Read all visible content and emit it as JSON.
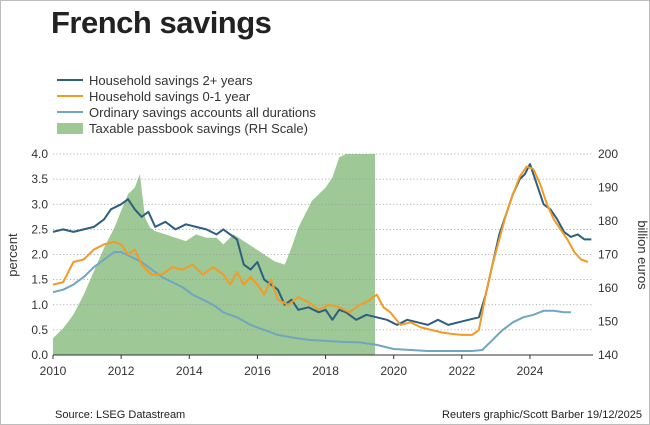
{
  "title": "French savings",
  "source": "Source: LSEG Datastream",
  "credit": "Reuters graphic/Scott Barber 19/12/2025",
  "chart_data": {
    "type": "line",
    "title": "French savings",
    "ylabel_left": "percent",
    "ylabel_right": "billion euros",
    "xlim": [
      2010,
      2025.85
    ],
    "ylim_left": [
      0,
      4
    ],
    "ylim_right": [
      140,
      200
    ],
    "x_ticks": [
      "2010",
      "2012",
      "2014",
      "2016",
      "2018",
      "2020",
      "2022",
      "2024"
    ],
    "y_ticks_left": [
      "0.0",
      "0.5",
      "1.0",
      "1.5",
      "2.0",
      "2.5",
      "3.0",
      "3.5",
      "4.0"
    ],
    "y_ticks_right": [
      "140",
      "150",
      "160",
      "170",
      "180",
      "190",
      "200"
    ],
    "grid": "horizontal dotted",
    "legend_position": "top-left",
    "series": [
      {
        "name": "Household savings 2+ years",
        "color": "#2e5f80",
        "axis": "left",
        "x": [
          2010.0,
          2010.3,
          2010.6,
          2010.9,
          2011.2,
          2011.5,
          2011.7,
          2012.0,
          2012.2,
          2012.4,
          2012.6,
          2012.8,
          2013.0,
          2013.3,
          2013.6,
          2013.9,
          2014.2,
          2014.5,
          2014.8,
          2015.0,
          2015.2,
          2015.4,
          2015.6,
          2015.8,
          2016.0,
          2016.2,
          2016.4,
          2016.6,
          2016.8,
          2017.0,
          2017.2,
          2017.5,
          2017.8,
          2018.0,
          2018.2,
          2018.4,
          2018.6,
          2018.9,
          2019.2,
          2019.5,
          2019.8,
          2020.1,
          2020.4,
          2020.7,
          2021.0,
          2021.3,
          2021.6,
          2021.9,
          2022.2,
          2022.5,
          2022.7,
          2022.9,
          2023.1,
          2023.3,
          2023.5,
          2023.7,
          2023.85,
          2024.0,
          2024.2,
          2024.4,
          2024.6,
          2024.8,
          2025.0,
          2025.2,
          2025.4,
          2025.6,
          2025.8
        ],
        "values": [
          2.45,
          2.5,
          2.45,
          2.5,
          2.55,
          2.7,
          2.9,
          3.0,
          3.1,
          2.9,
          2.75,
          2.85,
          2.55,
          2.65,
          2.5,
          2.6,
          2.55,
          2.5,
          2.4,
          2.5,
          2.4,
          2.3,
          1.8,
          1.7,
          1.85,
          1.5,
          1.4,
          1.3,
          1.0,
          1.1,
          0.9,
          0.95,
          0.85,
          0.9,
          0.7,
          0.9,
          0.85,
          0.7,
          0.8,
          0.75,
          0.7,
          0.6,
          0.7,
          0.65,
          0.6,
          0.7,
          0.6,
          0.65,
          0.7,
          0.75,
          1.2,
          1.8,
          2.4,
          2.8,
          3.2,
          3.5,
          3.6,
          3.8,
          3.4,
          3.0,
          2.9,
          2.7,
          2.45,
          2.35,
          2.4,
          2.3,
          2.3
        ]
      },
      {
        "name": "Household savings 0-1 year",
        "color": "#f29b25",
        "axis": "left",
        "x": [
          2010.0,
          2010.3,
          2010.6,
          2010.9,
          2011.2,
          2011.5,
          2011.8,
          2012.0,
          2012.2,
          2012.4,
          2012.6,
          2012.9,
          2013.2,
          2013.5,
          2013.8,
          2014.1,
          2014.4,
          2014.7,
          2015.0,
          2015.2,
          2015.4,
          2015.6,
          2015.8,
          2016.0,
          2016.2,
          2016.4,
          2016.6,
          2016.9,
          2017.2,
          2017.5,
          2017.8,
          2018.1,
          2018.4,
          2018.7,
          2019.0,
          2019.2,
          2019.5,
          2019.7,
          2019.9,
          2020.2,
          2020.5,
          2020.8,
          2021.1,
          2021.4,
          2021.7,
          2022.0,
          2022.3,
          2022.5,
          2022.7,
          2022.9,
          2023.1,
          2023.3,
          2023.5,
          2023.7,
          2023.9,
          2024.1,
          2024.3,
          2024.5,
          2024.7,
          2024.9,
          2025.1,
          2025.3,
          2025.5,
          2025.7
        ],
        "values": [
          1.4,
          1.45,
          1.85,
          1.9,
          2.1,
          2.2,
          2.25,
          2.2,
          2.0,
          2.1,
          1.8,
          1.6,
          1.6,
          1.75,
          1.7,
          1.8,
          1.6,
          1.75,
          1.6,
          1.4,
          1.65,
          1.4,
          1.55,
          1.4,
          1.2,
          1.5,
          1.1,
          1.0,
          1.15,
          1.05,
          0.9,
          1.0,
          0.95,
          0.85,
          1.0,
          1.05,
          1.2,
          0.95,
          0.85,
          0.6,
          0.65,
          0.55,
          0.5,
          0.45,
          0.42,
          0.4,
          0.4,
          0.5,
          1.2,
          1.8,
          2.3,
          2.8,
          3.2,
          3.55,
          3.75,
          3.7,
          3.4,
          3.0,
          2.7,
          2.5,
          2.3,
          2.05,
          1.9,
          1.85
        ]
      },
      {
        "name": "Ordinary savings accounts all durations",
        "color": "#6ea7bf",
        "axis": "left",
        "x": [
          2010.0,
          2010.3,
          2010.6,
          2010.9,
          2011.2,
          2011.5,
          2011.8,
          2012.0,
          2012.3,
          2012.6,
          2012.9,
          2013.2,
          2013.5,
          2013.8,
          2014.1,
          2014.4,
          2014.7,
          2015.0,
          2015.4,
          2015.8,
          2016.2,
          2016.6,
          2017.0,
          2017.5,
          2018.0,
          2018.5,
          2019.0,
          2019.5,
          2020.0,
          2020.5,
          2021.0,
          2021.5,
          2022.0,
          2022.3,
          2022.6,
          2022.9,
          2023.2,
          2023.5,
          2023.8,
          2024.1,
          2024.4,
          2024.7,
          2025.0,
          2025.2
        ],
        "values": [
          1.25,
          1.3,
          1.4,
          1.55,
          1.75,
          1.9,
          2.05,
          2.05,
          1.95,
          1.85,
          1.7,
          1.55,
          1.45,
          1.35,
          1.2,
          1.1,
          1.0,
          0.85,
          0.75,
          0.6,
          0.5,
          0.4,
          0.35,
          0.3,
          0.28,
          0.26,
          0.25,
          0.2,
          0.12,
          0.1,
          0.08,
          0.08,
          0.08,
          0.08,
          0.1,
          0.3,
          0.5,
          0.65,
          0.75,
          0.8,
          0.88,
          0.88,
          0.85,
          0.85
        ]
      },
      {
        "name": "Taxable passbook savings (RH Scale)",
        "color": "#9ec895",
        "axis": "right",
        "type": "area",
        "x": [
          2010.0,
          2010.3,
          2010.6,
          2010.9,
          2011.2,
          2011.5,
          2011.8,
          2012.0,
          2012.2,
          2012.4,
          2012.55,
          2012.7,
          2012.85,
          2013.0,
          2013.3,
          2013.6,
          2013.9,
          2014.2,
          2014.5,
          2014.8,
          2015.0,
          2015.3,
          2015.6,
          2015.9,
          2016.2,
          2016.5,
          2016.8,
          2017.0,
          2017.2,
          2017.4,
          2017.6,
          2017.8,
          2018.0,
          2018.2,
          2018.4,
          2018.6,
          2018.8,
          2019.0,
          2019.2,
          2019.45
        ],
        "values": [
          145,
          148,
          152,
          158,
          165,
          172,
          178,
          183,
          188,
          190,
          194,
          181,
          178,
          177,
          176,
          175,
          174,
          176,
          175,
          175,
          173,
          176,
          174,
          172,
          170,
          168,
          167,
          172,
          178,
          182,
          186,
          188,
          190,
          193,
          199,
          200,
          200,
          200,
          200,
          200
        ]
      }
    ]
  }
}
